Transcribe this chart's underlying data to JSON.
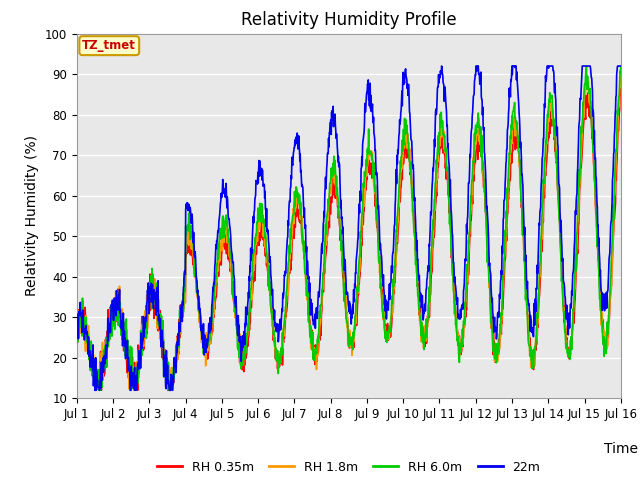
{
  "title": "Relativity Humidity Profile",
  "xlabel": "Time",
  "ylabel": "Relativity Humidity (%)",
  "ylim": [
    10,
    100
  ],
  "xlim": [
    0,
    15
  ],
  "xtick_labels": [
    "Jul 1",
    "Jul 2",
    "Jul 3",
    "Jul 4",
    "Jul 5",
    "Jul 6",
    "Jul 7",
    "Jul 8",
    "Jul 9",
    "Jul 10",
    "Jul 11",
    "Jul 12",
    "Jul 13",
    "Jul 14",
    "Jul 15",
    "Jul 16"
  ],
  "xtick_positions": [
    0,
    1,
    2,
    3,
    4,
    5,
    6,
    7,
    8,
    9,
    10,
    11,
    12,
    13,
    14,
    15
  ],
  "ytick_labels": [
    "10",
    "20",
    "30",
    "40",
    "50",
    "60",
    "70",
    "80",
    "90",
    "100"
  ],
  "ytick_positions": [
    10,
    20,
    30,
    40,
    50,
    60,
    70,
    80,
    90,
    100
  ],
  "line_colors": [
    "#ff0000",
    "#ff9900",
    "#00cc00",
    "#0000ee"
  ],
  "line_labels": [
    "RH 0.35m",
    "RH 1.8m",
    "RH 6.0m",
    "22m"
  ],
  "line_width": 1.2,
  "plot_bg_color": "#e8e8e8",
  "annotation_text": "TZ_tmet",
  "annotation_bg": "#ffffcc",
  "annotation_border": "#cc9900",
  "title_fontsize": 12,
  "axis_label_fontsize": 10,
  "tick_fontsize": 8.5
}
